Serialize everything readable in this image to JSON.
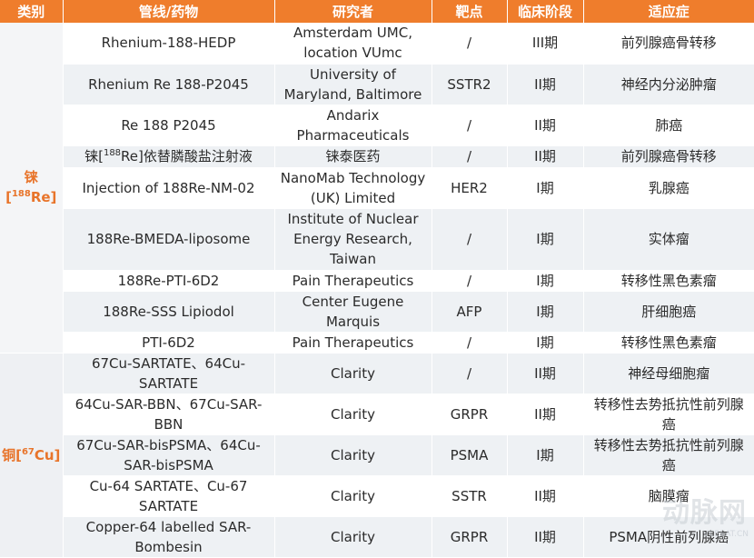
{
  "headers": [
    "类别",
    "管线/药物",
    "研究者",
    "靶点",
    "临床阶段",
    "适应症"
  ],
  "categories": {
    "re": {
      "prefix": "铼[",
      "sup": "188",
      "suffix": "Re]"
    },
    "cu": {
      "prefix": "铜[",
      "sup": "67",
      "suffix": "Cu]"
    }
  },
  "re_rows": [
    {
      "drug": "Rhenium-188-HEDP",
      "researcher": "Amsterdam UMC, location VUmc",
      "target": "/",
      "phase": "III期",
      "indication": "前列腺癌骨转移"
    },
    {
      "drug": "Rhenium Re 188-P2045",
      "researcher": "University of Maryland, Baltimore",
      "target": "SSTR2",
      "phase": "II期",
      "indication": "神经内分泌肿瘤"
    },
    {
      "drug": "Re 188 P2045",
      "researcher": "Andarix Pharmaceuticals",
      "target": "/",
      "phase": "II期",
      "indication": "肺癌"
    },
    {
      "drug_prefix": "铼[",
      "drug_sup": "188",
      "drug_suffix": "Re]依替膦酸盐注射液",
      "researcher": "铼泰医药",
      "target": "/",
      "phase": "II期",
      "indication": "前列腺癌骨转移"
    },
    {
      "drug": "Injection of 188Re-NM-02",
      "researcher": "NanoMab Technology (UK) Limited",
      "target": "HER2",
      "phase": "I期",
      "indication": "乳腺癌"
    },
    {
      "drug": "188Re-BMEDA-liposome",
      "researcher": "Institute of Nuclear Energy Research, Taiwan",
      "target": "/",
      "phase": "I期",
      "indication": "实体瘤"
    },
    {
      "drug": "188Re-PTI-6D2",
      "researcher": "Pain Therapeutics",
      "target": "/",
      "phase": "I期",
      "indication": "转移性黑色素瘤"
    },
    {
      "drug": "188Re-SSS Lipiodol",
      "researcher": "Center Eugene Marquis",
      "target": "AFP",
      "phase": "I期",
      "indication": "肝细胞癌"
    },
    {
      "drug": "PTI-6D2",
      "researcher": "Pain Therapeutics",
      "target": "/",
      "phase": "I期",
      "indication": "转移性黑色素瘤"
    }
  ],
  "cu_rows": [
    {
      "drug": "67Cu-SARTATE、64Cu-SARTATE",
      "researcher": "Clarity",
      "target": "/",
      "phase": "II期",
      "indication": "神经母细胞瘤"
    },
    {
      "drug": "64Cu-SAR-BBN、67Cu-SAR-BBN",
      "researcher": "Clarity",
      "target": "GRPR",
      "phase": "II期",
      "indication": "转移性去势抵抗性前列腺癌"
    },
    {
      "drug": "67Cu-SAR-bisPSMA、64Cu-SAR-bisPSMA",
      "researcher": "Clarity",
      "target": "PSMA",
      "phase": "I期",
      "indication": "转移性去势抵抗性前列腺癌"
    },
    {
      "drug": "Cu-64 SARTATE、Cu-67 SARTATE",
      "researcher": "Clarity",
      "target": "SSTR",
      "phase": "II期",
      "indication": "脑膜瘤"
    },
    {
      "drug": "Copper-64 labelled SAR-Bombesin",
      "researcher": "Clarity",
      "target": "GRPR",
      "phase": "II期",
      "indication": "PSMA阴性前列腺癌"
    }
  ],
  "watermark": {
    "main": "动脉网",
    "sub": "VCBEAT.CN"
  }
}
